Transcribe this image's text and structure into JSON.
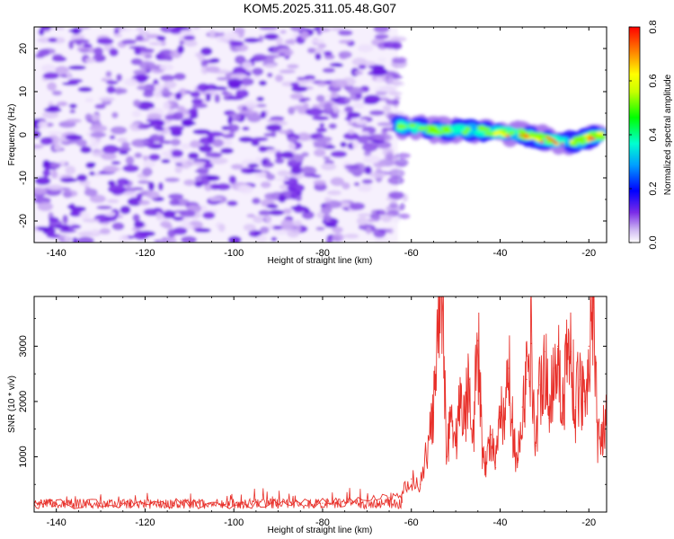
{
  "title": "KOM5.2025.311.05.48.G07",
  "colors": {
    "snr_line": "#e8302a",
    "purple_dark": "#6010e0",
    "purple_light": "#d9c6f5",
    "frame": "#000000"
  },
  "chart_data": [
    {
      "type": "heatmap",
      "xlabel": "Height of straight line (km)",
      "ylabel": "Frequency (Hz)",
      "xlim": [
        -145,
        -16
      ],
      "ylim": [
        -25,
        25
      ],
      "xticks": [
        -140,
        -120,
        -100,
        -80,
        -60,
        -40,
        -20
      ],
      "yticks": [
        -20,
        -10,
        0,
        10,
        20
      ],
      "noise_region_x": [
        -145,
        -63
      ],
      "signal_track": {
        "x": [
          -63,
          -55,
          -45,
          -35,
          -25,
          -17
        ],
        "freq": [
          2,
          1,
          1,
          0,
          -2,
          0
        ],
        "peak_amplitude": 0.8
      },
      "colorbar": {
        "label": "Normalized spectral amplitude",
        "range": [
          0,
          0.8
        ],
        "ticks": [
          0.0,
          0.2,
          0.4,
          0.6,
          0.8
        ],
        "tick_labels": [
          "0.0",
          "0.2",
          "0.4",
          "0.6",
          "0.8"
        ]
      }
    },
    {
      "type": "line",
      "xlabel": "Height of straight line (km)",
      "ylabel": "SNR (10 * v/v)",
      "xlim": [
        -145,
        -16
      ],
      "ylim": [
        0,
        3900
      ],
      "xticks": [
        -140,
        -120,
        -100,
        -80,
        -60,
        -40,
        -20
      ],
      "yticks": [
        1000,
        2000,
        3000
      ],
      "series": [
        {
          "name": "SNR",
          "x": [
            -145,
            -140,
            -130,
            -120,
            -110,
            -100,
            -90,
            -80,
            -70,
            -65,
            -62,
            -60,
            -58,
            -56,
            -55,
            -54,
            -53,
            -52,
            -51,
            -50,
            -49,
            -48,
            -47,
            -46,
            -45,
            -44,
            -43,
            -42,
            -41,
            -40,
            -39,
            -38,
            -37,
            -36,
            -35,
            -34,
            -33,
            -32,
            -31,
            -30,
            -29,
            -28,
            -27,
            -26,
            -25,
            -24,
            -23,
            -22,
            -21,
            -20,
            -19,
            -18,
            -17,
            -16
          ],
          "y": [
            150,
            140,
            160,
            170,
            150,
            140,
            150,
            160,
            200,
            260,
            350,
            600,
            500,
            1300,
            1800,
            3100,
            3900,
            1000,
            1900,
            1200,
            2100,
            1700,
            2400,
            1500,
            3100,
            1100,
            900,
            1400,
            800,
            1800,
            1500,
            2600,
            1300,
            900,
            1900,
            2400,
            3050,
            1200,
            2300,
            2900,
            1700,
            2600,
            3000,
            1700,
            2800,
            2900,
            1900,
            2400,
            2000,
            3000,
            3700,
            1300,
            1500,
            1600
          ]
        }
      ]
    }
  ]
}
